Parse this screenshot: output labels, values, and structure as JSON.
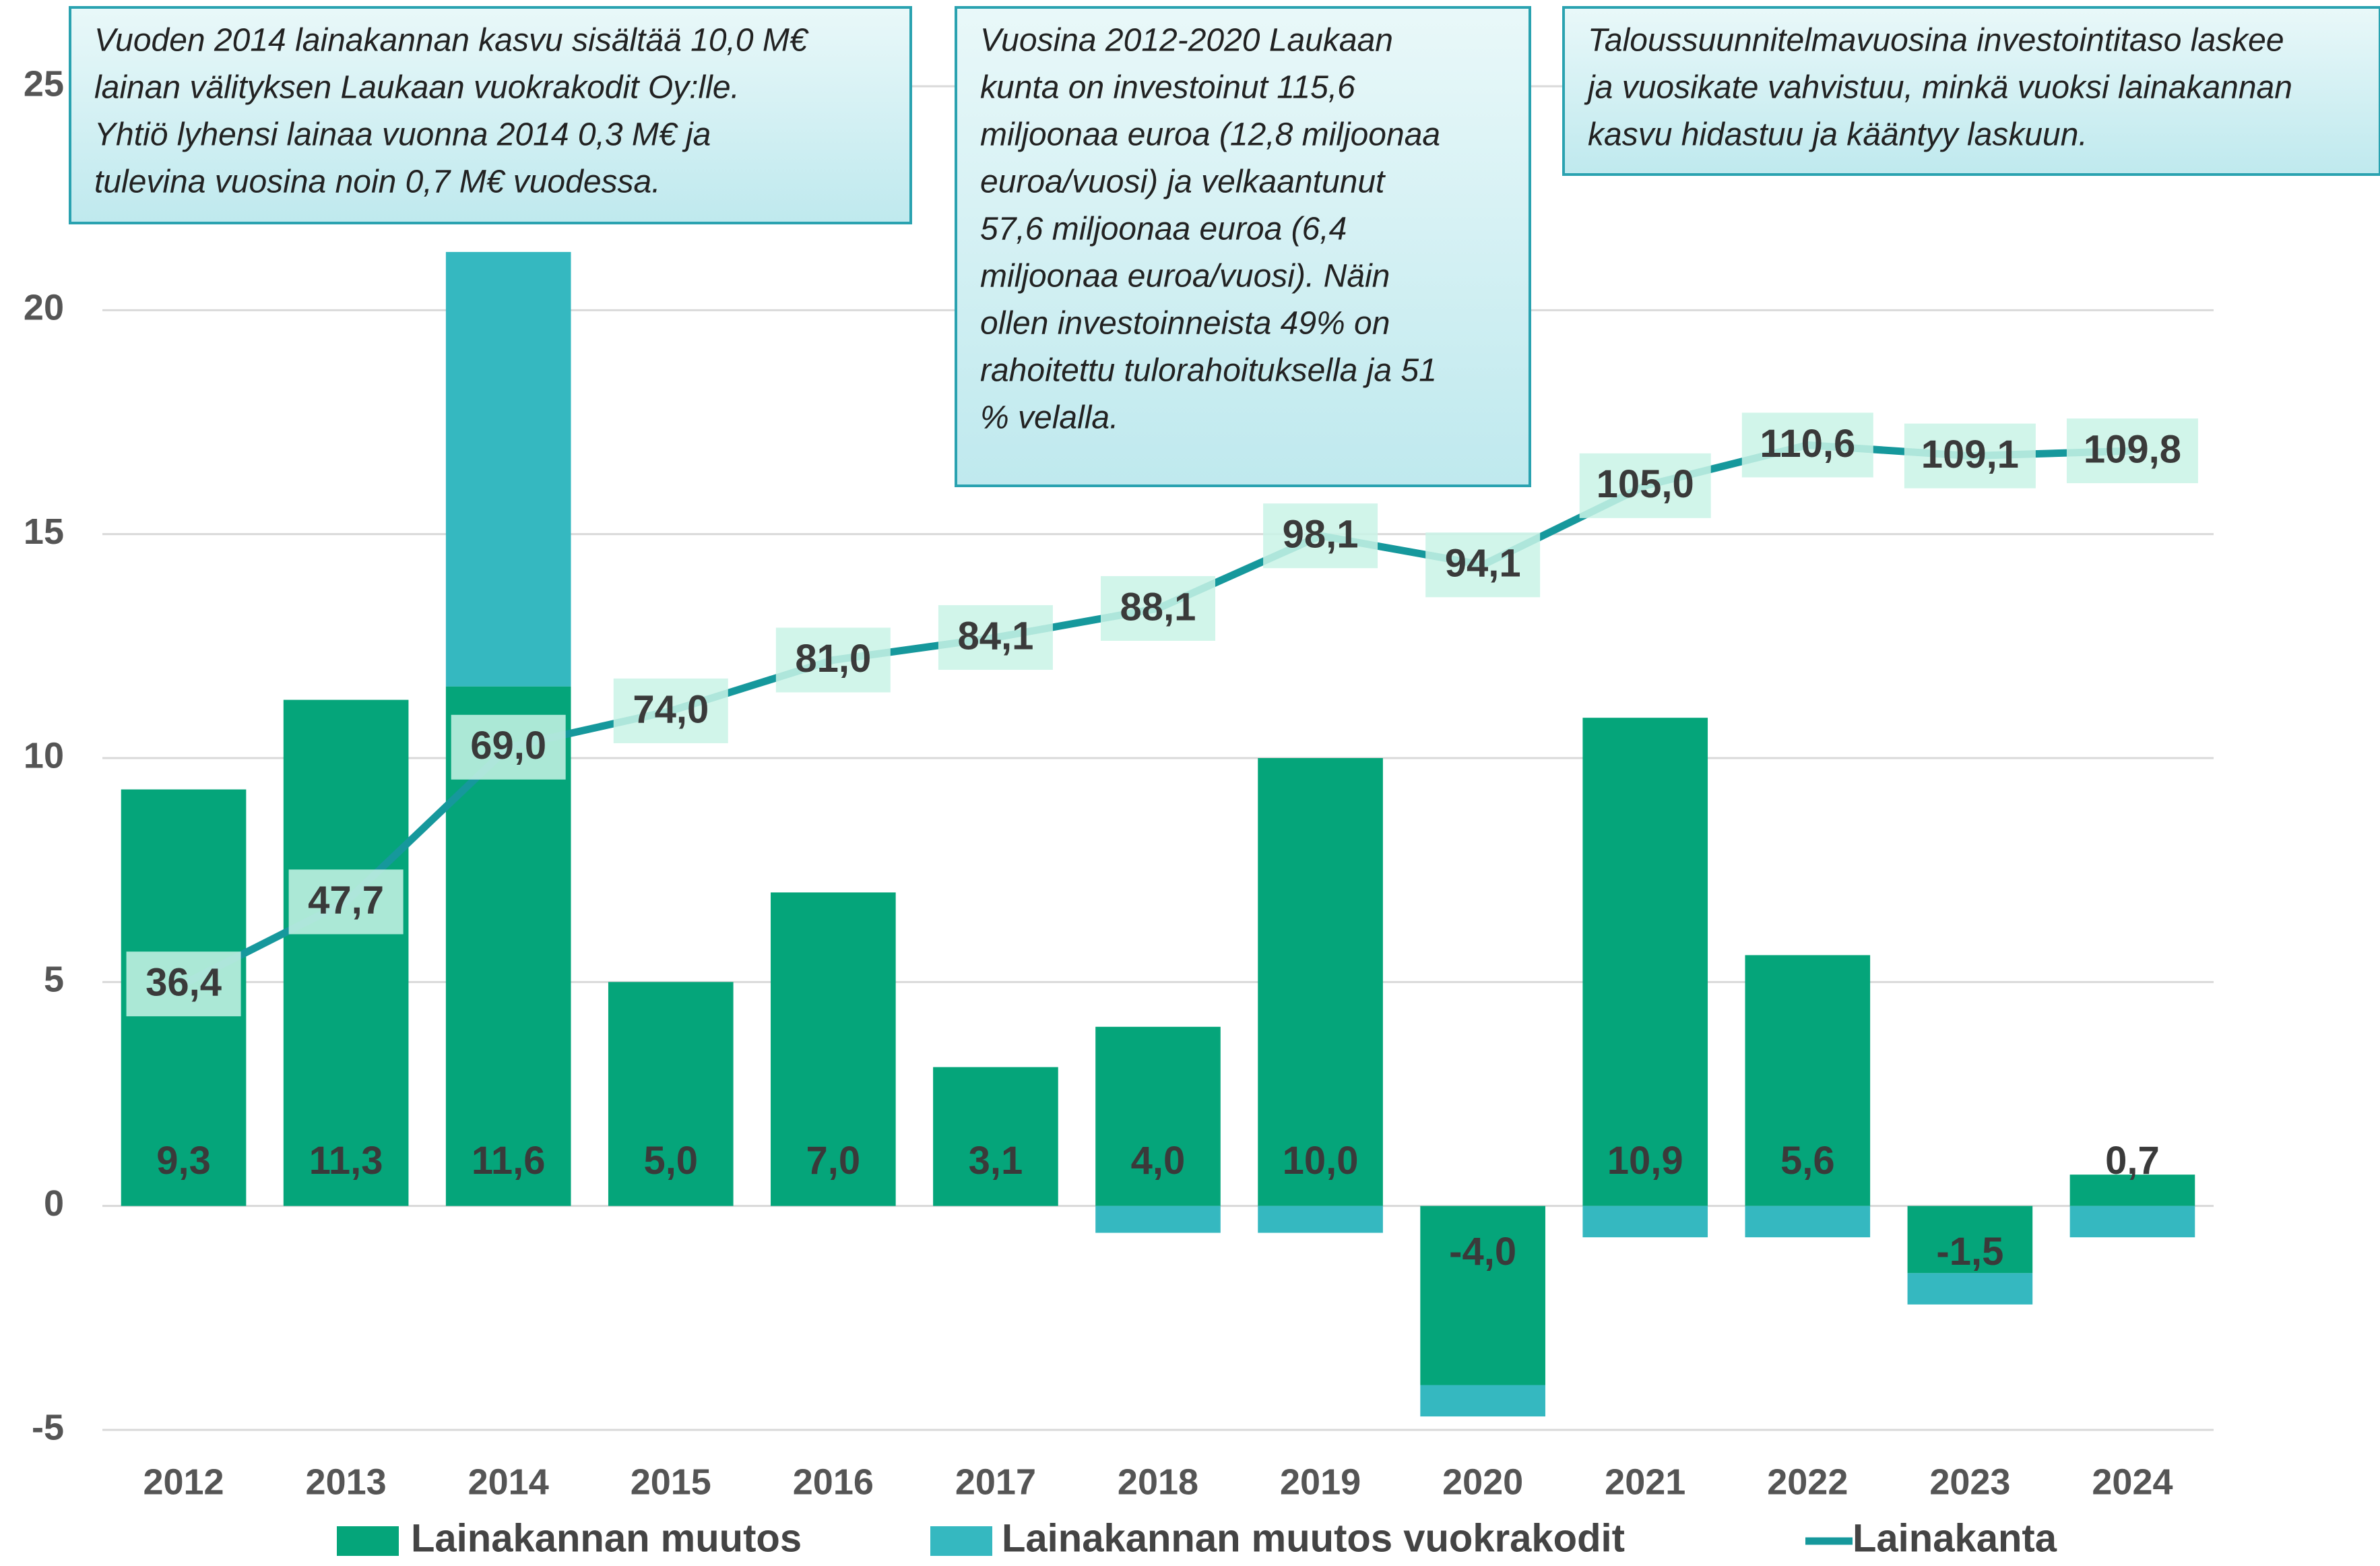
{
  "chart_data": {
    "type": "bar",
    "categories": [
      "2012",
      "2013",
      "2014",
      "2015",
      "2016",
      "2017",
      "2018",
      "2019",
      "2020",
      "2021",
      "2022",
      "2023",
      "2024"
    ],
    "series": [
      {
        "name": "Lainakannan muutos",
        "color": "#05a57a",
        "values": [
          9.3,
          11.3,
          11.6,
          5.0,
          7.0,
          3.1,
          4.0,
          10.0,
          -4.0,
          10.9,
          5.6,
          -1.5,
          0.7
        ],
        "value_labels": [
          "9,3",
          "11,3",
          "11,6",
          "5,0",
          "7,0",
          "3,1",
          "4,0",
          "10,0",
          "-4,0",
          "10,9",
          "5,6",
          "-1,5",
          "0,7"
        ]
      },
      {
        "name": "Lainakannan muutos vuokrakodit",
        "color": "#35b8c0",
        "values": [
          0,
          0,
          9.7,
          0,
          0,
          0,
          -0.6,
          -0.6,
          -0.7,
          -0.7,
          -0.7,
          -0.7,
          -0.7
        ]
      },
      {
        "name": "Lainakanta",
        "type": "line",
        "axis": "y2",
        "color": "#16989c",
        "values": [
          36.4,
          47.7,
          69.0,
          74.0,
          81.0,
          84.1,
          88.1,
          98.1,
          94.1,
          105.0,
          110.6,
          109.1,
          109.8
        ],
        "value_labels": [
          "36,4",
          "47,7",
          "69,0",
          "74,0",
          "81,0",
          "84,1",
          "88,1",
          "98,1",
          "94,1",
          "105,0",
          "110,6",
          "109,1",
          "109,8"
        ]
      }
    ],
    "stacked": true,
    "ylim": [
      -5,
      25
    ],
    "yticks": [
      -5,
      0,
      5,
      10,
      15,
      20,
      25
    ],
    "y2lim": [
      -25,
      160
    ],
    "grid": true,
    "legend": "bottom",
    "annotations": [
      [
        "Vuoden 2014 lainakannan kasvu sisältää 10,0 M€",
        "lainan välityksen Laukaan vuokrakodit Oy:lle.",
        "Yhtiö lyhensi lainaa vuonna 2014 0,3 M€ ja",
        "tulevina vuosina noin 0,7 M€ vuodessa."
      ],
      [
        "Vuosina 2012-2020 Laukaan",
        "kunta on investoinut 115,6",
        "miljoonaa euroa (12,8 miljoonaa",
        "euroa/vuosi) ja velkaantunut",
        "57,6 miljoonaa euroa (6,4",
        "miljoonaa euroa/vuosi). Näin",
        "ollen investoinneista 49% on",
        "rahoitettu tulorahoituksella ja 51",
        "% velalla."
      ],
      [
        "Taloussuunnitelmavuosina investointitaso laskee",
        "ja vuosikate vahvistuu, minkä vuoksi lainakannan",
        "kasvu hidastuu ja kääntyy laskuun."
      ]
    ]
  }
}
